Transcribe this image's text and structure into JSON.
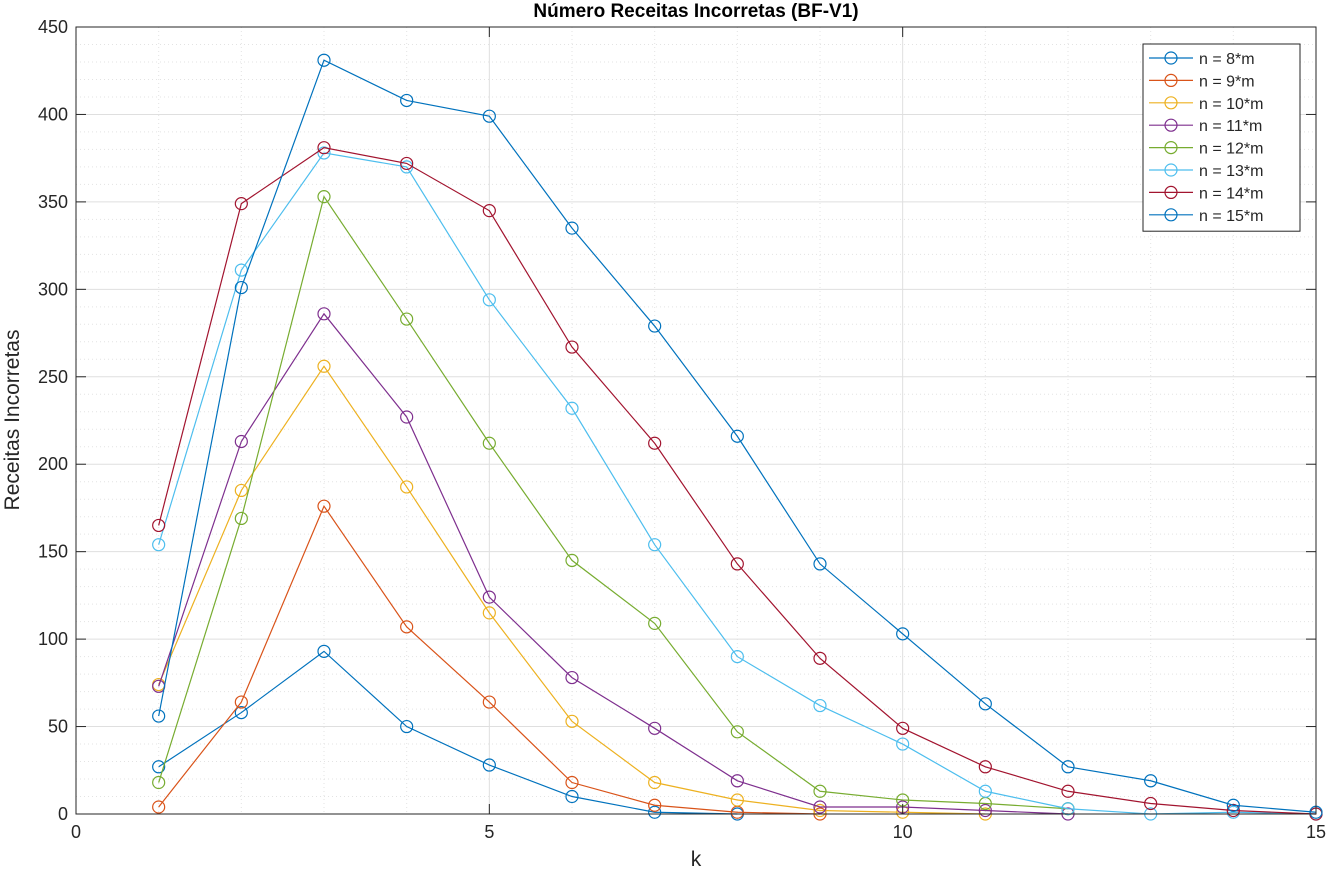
{
  "chart_data": {
    "type": "line",
    "title": "Número Receitas Incorretas (BF-V1)",
    "xlabel": "k",
    "ylabel": "Receitas Incorretas",
    "xlim": [
      0,
      15
    ],
    "ylim": [
      0,
      450
    ],
    "xticks": [
      0,
      5,
      10,
      15
    ],
    "yticks": [
      0,
      50,
      100,
      150,
      200,
      250,
      300,
      350,
      400,
      450
    ],
    "grid": true,
    "minor_grid": true,
    "legend_position": "top-right",
    "marker": "circle",
    "series": [
      {
        "name": "n = 8*m",
        "color": "#0072BD",
        "x": [
          1,
          2,
          3,
          4,
          5,
          6,
          7,
          8
        ],
        "values": [
          27,
          58,
          93,
          50,
          28,
          10,
          1,
          0
        ]
      },
      {
        "name": "n = 9*m",
        "color": "#D95319",
        "x": [
          1,
          2,
          3,
          4,
          5,
          6,
          7,
          8,
          9
        ],
        "values": [
          4,
          64,
          176,
          107,
          64,
          18,
          5,
          1,
          0
        ]
      },
      {
        "name": "n = 10*m",
        "color": "#EDB120",
        "x": [
          1,
          2,
          3,
          4,
          5,
          6,
          7,
          8,
          9,
          10,
          11
        ],
        "values": [
          74,
          185,
          256,
          187,
          115,
          53,
          18,
          8,
          2,
          1,
          0
        ]
      },
      {
        "name": "n = 11*m",
        "color": "#7E2F8E",
        "x": [
          1,
          2,
          3,
          4,
          5,
          6,
          7,
          8,
          9,
          10,
          11,
          12
        ],
        "values": [
          73,
          213,
          286,
          227,
          124,
          78,
          49,
          19,
          4,
          4,
          2,
          0
        ]
      },
      {
        "name": "n = 12*m",
        "color": "#77AC30",
        "x": [
          1,
          2,
          3,
          4,
          5,
          6,
          7,
          8,
          9,
          10,
          11,
          12
        ],
        "values": [
          18,
          169,
          353,
          283,
          212,
          145,
          109,
          47,
          13,
          8,
          6,
          3
        ]
      },
      {
        "name": "n = 13*m",
        "color": "#4DBEEE",
        "x": [
          1,
          2,
          3,
          4,
          5,
          6,
          7,
          8,
          9,
          10,
          11,
          12,
          13,
          14,
          15
        ],
        "values": [
          154,
          311,
          378,
          370,
          294,
          232,
          154,
          90,
          62,
          40,
          13,
          3,
          0,
          1,
          0
        ]
      },
      {
        "name": "n = 14*m",
        "color": "#A2142F",
        "x": [
          1,
          2,
          3,
          4,
          5,
          6,
          7,
          8,
          9,
          10,
          11,
          12,
          13,
          14,
          15
        ],
        "values": [
          165,
          349,
          381,
          372,
          345,
          267,
          212,
          143,
          89,
          49,
          27,
          13,
          6,
          2,
          0
        ]
      },
      {
        "name": "n = 15*m",
        "color": "#0072BD",
        "x": [
          1,
          2,
          3,
          4,
          5,
          6,
          7,
          8,
          9,
          10,
          11,
          12,
          13,
          14,
          15
        ],
        "values": [
          56,
          301,
          431,
          408,
          399,
          335,
          279,
          216,
          143,
          103,
          63,
          27,
          19,
          5,
          1
        ]
      }
    ]
  }
}
